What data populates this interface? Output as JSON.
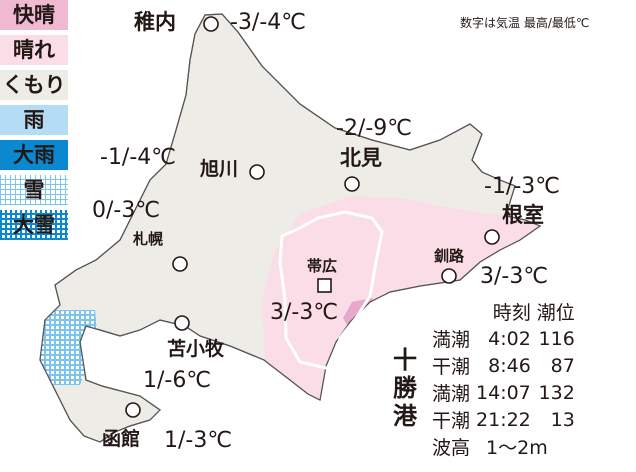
{
  "legend": [
    {
      "label": "快晴",
      "color": "#f0b9d2"
    },
    {
      "label": "晴れ",
      "color": "#fadde6"
    },
    {
      "label": "くもり",
      "color": "#eeece6"
    },
    {
      "label": "雨",
      "color": "#b4dcf5"
    },
    {
      "label": "大雨",
      "color": "#0a88d0"
    },
    {
      "label": "雪",
      "color": "#b4dcf5",
      "pattern": "dots"
    },
    {
      "label": "大雪",
      "color": "#0a88d0",
      "pattern": "dots"
    }
  ],
  "note": "数字は気温 最高/最低℃",
  "cities": [
    {
      "name": "稚内",
      "temp": "-3/-4℃"
    },
    {
      "name": "旭川",
      "temp": "-1/-4℃"
    },
    {
      "name": "北見",
      "temp": "-2/-9℃"
    },
    {
      "name": "根室",
      "temp": "-1/-3℃"
    },
    {
      "name": "札幌",
      "temp": "0/-3℃"
    },
    {
      "name": "釧路",
      "temp": "3/-3℃"
    },
    {
      "name": "帯広",
      "temp": "3/-3℃"
    },
    {
      "name": "苫小牧",
      "temp": "1/-6℃"
    },
    {
      "name": "函館",
      "temp": "1/-3℃"
    }
  ],
  "tide": {
    "port": "十勝港",
    "header": [
      "時刻",
      "潮位"
    ],
    "rows": [
      {
        "kind": "満潮",
        "time": "4:02",
        "level": "116"
      },
      {
        "kind": "干潮",
        "time": "8:46",
        "level": "87"
      },
      {
        "kind": "満潮",
        "time": "14:07",
        "level": "132"
      },
      {
        "kind": "干潮",
        "time": "21:22",
        "level": "13"
      }
    ],
    "wave_label": "波高",
    "wave": "1〜2m"
  },
  "colors": {
    "land": "#eeece6",
    "clear": "#f0b9d2",
    "sunny": "#fadde6",
    "coast": "#555555"
  }
}
